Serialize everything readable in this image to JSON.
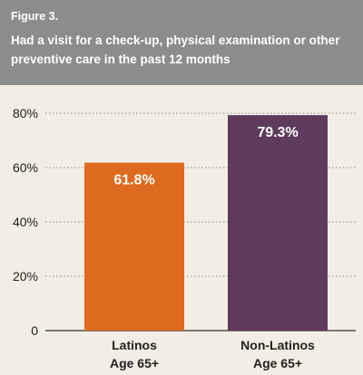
{
  "figure": {
    "label": "Figure 3.",
    "title": "Had a visit for a check-up, physical examination or other preventive care in the past 12 months"
  },
  "colors": {
    "header_bg": "#8a8c8e",
    "plot_bg": "#f2eee4",
    "grid": "#8a8c8e",
    "axis": "#333333",
    "bar_latinos": "#dd6a1f",
    "bar_non_latinos": "#5e3b5c",
    "text": "#222222"
  },
  "chart_data": {
    "type": "bar",
    "categories": [
      [
        "Latinos",
        "Age 65+"
      ],
      [
        "Non-Latinos",
        "Age 65+"
      ]
    ],
    "values": [
      61.8,
      79.3
    ],
    "data_labels": [
      "61.8%",
      "79.3%"
    ],
    "ylim": [
      0,
      80
    ],
    "yticks": [
      0,
      20,
      40,
      60,
      80
    ],
    "ytick_labels": [
      "0",
      "20%",
      "40%",
      "60%",
      "80%"
    ],
    "grid": true,
    "xlabel": "",
    "ylabel": ""
  }
}
